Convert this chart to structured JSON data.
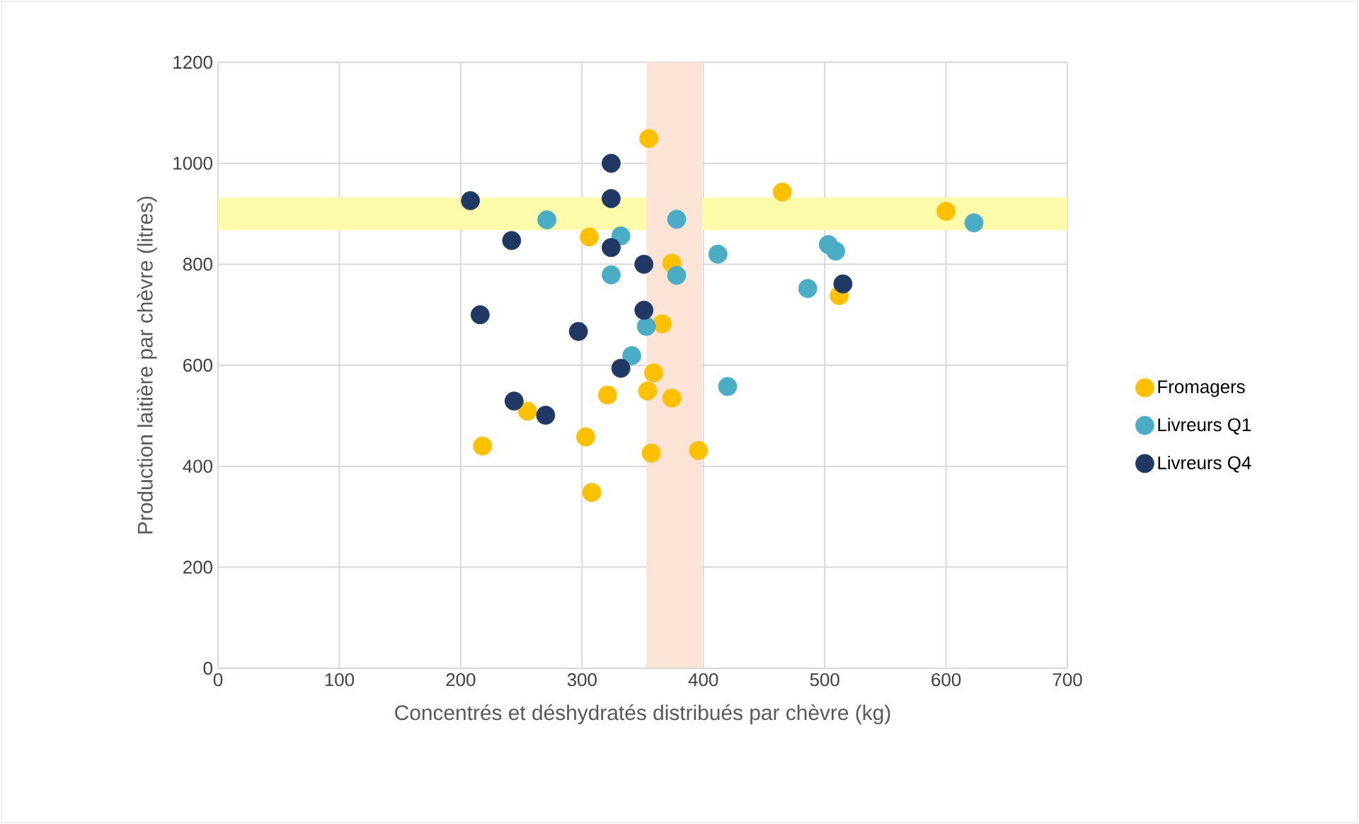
{
  "chart_data": {
    "type": "scatter",
    "xlabel": "Concentrés et déshydratés distribués par chèvre (kg)",
    "ylabel": "Production laitière par chèvre (litres)",
    "xlim": [
      0,
      700
    ],
    "xticks": [
      0,
      100,
      200,
      300,
      400,
      500,
      600,
      700
    ],
    "ylim": [
      0,
      1200
    ],
    "yticks": [
      0,
      200,
      400,
      600,
      800,
      1000,
      1200
    ],
    "grid": true,
    "legend": "right",
    "marker": "circle",
    "bands": [
      {
        "axis": "y",
        "from": 868,
        "to": 932,
        "color": "#fdfbaa"
      },
      {
        "axis": "x",
        "from": 353,
        "to": 399,
        "color": "#fbe3d6"
      }
    ],
    "series": [
      {
        "name": "Fromagers",
        "color": "#ffc000",
        "x": [
          355,
          306,
          374,
          366,
          359,
          354,
          374,
          321,
          255,
          218,
          303,
          357,
          396,
          308,
          465,
          600,
          512
        ],
        "values": [
          1049,
          854,
          802,
          682,
          585,
          549,
          535,
          541,
          509,
          440,
          458,
          426,
          431,
          348,
          943,
          905,
          738
        ]
      },
      {
        "name": "Livreurs Q1",
        "color": "#4bacc6",
        "x": [
          412,
          503,
          509,
          486,
          420,
          378,
          353,
          332,
          324,
          341,
          271,
          623,
          378
        ],
        "values": [
          820,
          839,
          826,
          752,
          558,
          778,
          677,
          856,
          779,
          619,
          888,
          882,
          889
        ]
      },
      {
        "name": "Livreurs Q4",
        "color": "#1f3864",
        "x": [
          324,
          208,
          324,
          324,
          242,
          351,
          216,
          351,
          297,
          332,
          244,
          270,
          515
        ],
        "values": [
          930,
          926,
          1000,
          833,
          847,
          800,
          700,
          709,
          667,
          594,
          529,
          501,
          761
        ]
      }
    ]
  }
}
